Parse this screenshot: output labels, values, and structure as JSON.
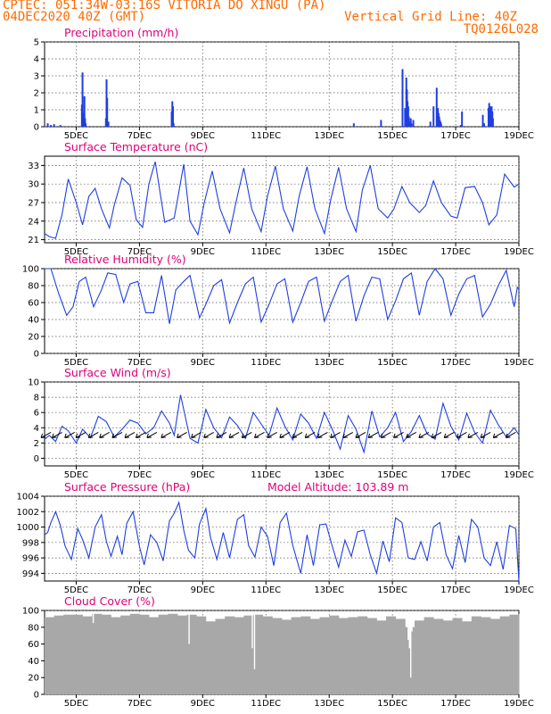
{
  "header": {
    "line1": "CPTEC:  051:34W-03:16S  VITORIA DO XINGU (PA)",
    "line2": "04DEC2020 40Z (GMT)",
    "grid_note": "Vertical Grid Line: 40Z",
    "code": "TQ0126L028"
  },
  "colors": {
    "header": "#ff6a00",
    "title": "#e0007a",
    "series": "#1f3fe0",
    "cloud": "#a8a8a8",
    "grid": "#555555"
  },
  "chart_data": [
    {
      "type": "bar",
      "title": "Precipitation (mm/h)",
      "ylim": [
        0,
        5
      ],
      "yticks": [
        0,
        1,
        2,
        3,
        4,
        5
      ],
      "xticks": [
        "5DEC",
        "7DEC",
        "9DEC",
        "11DEC",
        "13DEC",
        "15DEC",
        "17DEC",
        "19DEC"
      ],
      "grid": true,
      "series": [
        {
          "x": [
            0.1,
            0.2,
            0.3,
            0.5,
            1.18,
            1.2,
            1.22,
            1.26,
            1.28,
            1.3,
            1.94,
            1.96,
            1.98,
            2.02,
            4.02,
            4.04,
            4.06,
            4.08,
            9.78,
            10.64,
            11.32,
            11.4,
            11.44,
            11.46,
            11.48,
            11.5,
            11.52,
            11.54,
            11.58,
            11.6,
            11.66,
            12.2,
            12.3,
            12.4,
            12.44,
            12.46,
            12.48,
            12.5,
            12.52,
            12.54,
            13.16,
            13.2,
            13.86,
            13.9,
            14.04,
            14.06,
            14.08,
            14.1,
            14.12,
            14.14,
            14.16,
            14.18
          ],
          "values": [
            0.2,
            0.1,
            0.15,
            0.1,
            1.3,
            3.2,
            0.8,
            1.8,
            0.5,
            0.2,
            0.5,
            2.8,
            1.7,
            0.3,
            0.9,
            1.5,
            1.2,
            0.2,
            0.2,
            0.4,
            3.4,
            1.1,
            2.9,
            2.2,
            1.5,
            1.2,
            0.6,
            0.3,
            0.5,
            0.2,
            0.4,
            0.3,
            1.2,
            2.3,
            1.1,
            0.8,
            0.6,
            0.4,
            0.3,
            0.2,
            0.1,
            0.9,
            0.7,
            0.2,
            1.1,
            1.4,
            1.0,
            1.2,
            0.8,
            1.2,
            0.9,
            0.5
          ]
        }
      ]
    },
    {
      "type": "line",
      "title": "Surface Temperature (nC)",
      "ylim": [
        20.5,
        34.5
      ],
      "yticks": [
        21,
        24,
        27,
        30,
        33
      ],
      "xticks": [
        "5DEC",
        "7DEC",
        "9DEC",
        "11DEC",
        "13DEC",
        "15DEC",
        "17DEC",
        "19DEC"
      ],
      "grid": true,
      "series": [
        {
          "x": [
            0,
            0.15,
            0.35,
            0.55,
            0.75,
            1.0,
            1.2,
            1.4,
            1.6,
            1.8,
            2.05,
            2.2,
            2.45,
            2.7,
            2.9,
            3.1,
            3.3,
            3.5,
            3.8,
            4.1,
            4.4,
            4.6,
            4.85,
            5.05,
            5.3,
            5.55,
            5.85,
            6.05,
            6.3,
            6.55,
            6.85,
            7.05,
            7.3,
            7.55,
            7.85,
            8.05,
            8.3,
            8.55,
            8.85,
            9.05,
            9.3,
            9.55,
            9.85,
            10.05,
            10.3,
            10.55,
            10.85,
            11.05,
            11.3,
            11.55,
            11.85,
            12.05,
            12.3,
            12.55,
            12.85,
            13.05,
            13.3,
            13.6,
            13.85,
            14.05,
            14.3,
            14.55,
            14.85,
            15.0
          ],
          "values": [
            22.0,
            21.5,
            21.2,
            25.0,
            30.8,
            27.0,
            23.4,
            28.0,
            29.3,
            26.0,
            22.9,
            26.5,
            31.0,
            29.8,
            24.2,
            23.0,
            30.0,
            33.6,
            23.8,
            24.5,
            33.2,
            24.0,
            21.8,
            27.0,
            32.1,
            26.0,
            22.1,
            27.0,
            32.6,
            26.0,
            22.3,
            28.0,
            32.9,
            26.0,
            22.4,
            28.0,
            32.8,
            26.0,
            22.0,
            27.5,
            32.7,
            26.0,
            22.3,
            29.0,
            33.0,
            26.0,
            24.5,
            26.0,
            29.6,
            27.0,
            25.4,
            26.5,
            30.5,
            27.0,
            24.8,
            24.5,
            29.4,
            29.6,
            27.0,
            23.4,
            25.0,
            31.6,
            29.5,
            30.0
          ]
        }
      ]
    },
    {
      "type": "line",
      "title": "Relative Humidity (%)",
      "ylim": [
        0,
        100
      ],
      "yticks": [
        0,
        20,
        40,
        60,
        80,
        100
      ],
      "xticks": [
        "5DEC",
        "7DEC",
        "9DEC",
        "11DEC",
        "13DEC",
        "15DEC",
        "17DEC",
        "19DEC"
      ],
      "grid": true,
      "series": [
        {
          "x": [
            0,
            0.2,
            0.45,
            0.7,
            0.9,
            1.1,
            1.3,
            1.55,
            1.8,
            2.0,
            2.25,
            2.5,
            2.7,
            2.95,
            3.2,
            3.45,
            3.7,
            3.95,
            4.15,
            4.4,
            4.6,
            4.9,
            5.1,
            5.35,
            5.6,
            5.85,
            6.1,
            6.35,
            6.6,
            6.85,
            7.1,
            7.35,
            7.6,
            7.85,
            8.1,
            8.35,
            8.6,
            8.85,
            9.1,
            9.35,
            9.6,
            9.85,
            10.1,
            10.35,
            10.6,
            10.85,
            11.1,
            11.35,
            11.6,
            11.85,
            12.1,
            12.35,
            12.6,
            12.85,
            13.1,
            13.35,
            13.6,
            13.85,
            14.1,
            14.35,
            14.6,
            14.85,
            14.95,
            15.0
          ],
          "values": [
            100,
            100,
            70,
            45,
            55,
            85,
            90,
            55,
            75,
            95,
            93,
            60,
            82,
            85,
            48,
            48,
            92,
            35,
            75,
            85,
            92,
            42,
            58,
            80,
            87,
            36,
            60,
            82,
            90,
            37,
            58,
            82,
            88,
            37,
            60,
            85,
            90,
            38,
            62,
            85,
            92,
            38,
            68,
            90,
            88,
            40,
            62,
            88,
            95,
            45,
            85,
            100,
            88,
            45,
            70,
            88,
            92,
            43,
            58,
            80,
            98,
            55,
            78,
            76
          ]
        }
      ]
    },
    {
      "type": "line",
      "title": "Surface Wind (m/s)",
      "ylim": [
        -1,
        10
      ],
      "yticks": [
        0,
        2,
        4,
        6,
        8,
        10
      ],
      "xticks": [
        "5DEC",
        "7DEC",
        "9DEC",
        "11DEC",
        "13DEC",
        "15DEC",
        "17DEC",
        "19DEC"
      ],
      "grid": true,
      "series": [
        {
          "x": [
            0,
            0.15,
            0.35,
            0.55,
            0.75,
            1.0,
            1.2,
            1.45,
            1.7,
            1.95,
            2.2,
            2.45,
            2.7,
            2.95,
            3.2,
            3.45,
            3.7,
            3.95,
            4.1,
            4.3,
            4.6,
            4.85,
            5.1,
            5.35,
            5.6,
            5.85,
            6.1,
            6.35,
            6.6,
            6.85,
            7.1,
            7.35,
            7.6,
            7.85,
            8.1,
            8.35,
            8.6,
            8.85,
            9.1,
            9.35,
            9.6,
            9.85,
            10.1,
            10.35,
            10.6,
            10.85,
            11.1,
            11.35,
            11.6,
            11.85,
            12.1,
            12.35,
            12.6,
            12.85,
            13.1,
            13.35,
            13.6,
            13.85,
            14.1,
            14.35,
            14.6,
            14.85,
            15.0
          ],
          "values": [
            2.5,
            3.0,
            2.2,
            4.2,
            3.6,
            2.0,
            3.8,
            2.7,
            5.5,
            4.8,
            2.8,
            3.8,
            5.0,
            4.6,
            3.2,
            4.0,
            6.2,
            4.6,
            3.0,
            8.3,
            2.6,
            2.0,
            6.4,
            4.0,
            2.7,
            5.4,
            4.3,
            2.6,
            6.0,
            4.5,
            3.0,
            6.6,
            4.2,
            2.4,
            5.8,
            4.6,
            2.6,
            6.0,
            3.8,
            1.2,
            5.6,
            3.8,
            0.8,
            6.2,
            2.8,
            4.0,
            6.0,
            2.2,
            3.5,
            5.6,
            3.2,
            2.5,
            7.2,
            4.2,
            2.4,
            5.9,
            3.4,
            2.0,
            6.3,
            4.4,
            2.8,
            4.0,
            3.1
          ]
        }
      ],
      "vectors": {
        "x": [
          0.2,
          0.55,
          0.95,
          1.3,
          1.7,
          2.05,
          2.45,
          2.85,
          3.2,
          3.55,
          4.0,
          4.5,
          4.95,
          5.35,
          5.75,
          6.15,
          6.55,
          6.95,
          7.35,
          7.75,
          8.15,
          8.55,
          8.95,
          9.35,
          9.75,
          10.15,
          10.55,
          10.95,
          11.35,
          11.75,
          12.15,
          12.55,
          12.95,
          13.35,
          13.7,
          14.1,
          14.5,
          14.9
        ]
      }
    },
    {
      "type": "line",
      "title": "Surface Pressure (hPa)",
      "annotation": "Model Altitude: 103.89 m",
      "ylim": [
        993,
        1004
      ],
      "yticks": [
        994,
        996,
        998,
        1000,
        1002,
        1004
      ],
      "xticks": [
        "5DEC",
        "7DEC",
        "9DEC",
        "11DEC",
        "13DEC",
        "15DEC",
        "17DEC",
        "19DEC"
      ],
      "grid": true,
      "series": [
        {
          "x": [
            0,
            0.1,
            0.2,
            0.35,
            0.5,
            0.65,
            0.85,
            1.05,
            1.2,
            1.4,
            1.6,
            1.8,
            1.95,
            2.1,
            2.3,
            2.45,
            2.6,
            2.8,
            3.0,
            3.15,
            3.35,
            3.55,
            3.75,
            3.95,
            4.1,
            4.25,
            4.4,
            4.55,
            4.75,
            4.9,
            5.1,
            5.25,
            5.45,
            5.65,
            5.85,
            6.1,
            6.3,
            6.45,
            6.65,
            6.85,
            7.05,
            7.25,
            7.45,
            7.65,
            7.85,
            8.1,
            8.3,
            8.5,
            8.7,
            8.9,
            9.1,
            9.3,
            9.5,
            9.7,
            9.9,
            10.1,
            10.3,
            10.5,
            10.7,
            10.9,
            11.1,
            11.3,
            11.5,
            11.7,
            11.9,
            12.1,
            12.3,
            12.5,
            12.7,
            12.9,
            13.1,
            13.3,
            13.5,
            13.7,
            13.9,
            14.1,
            14.3,
            14.5,
            14.7,
            14.9,
            15.0
          ],
          "values": [
            999.0,
            999.3,
            1000.6,
            1002.0,
            1000.2,
            997.5,
            995.8,
            999.8,
            998.4,
            996.0,
            1000.0,
            1001.6,
            998.2,
            996.2,
            998.8,
            996.4,
            1000.5,
            1002.0,
            997.5,
            995.1,
            999.0,
            998.0,
            995.6,
            1000.8,
            1001.8,
            1003.2,
            999.6,
            997.0,
            996.0,
            1000.4,
            1002.4,
            998.6,
            995.8,
            999.3,
            996.0,
            1001.0,
            1001.6,
            997.6,
            996.1,
            1000.0,
            998.8,
            995.0,
            1000.6,
            1001.8,
            997.6,
            994.0,
            999.0,
            995.0,
            1000.3,
            1000.4,
            997.5,
            994.8,
            998.3,
            996.2,
            999.4,
            999.6,
            996.4,
            994.0,
            998.2,
            995.5,
            1001.2,
            1000.6,
            996.0,
            995.8,
            998.1,
            995.6,
            1000.0,
            1000.6,
            996.4,
            994.6,
            998.9,
            995.4,
            1001.0,
            1000.0,
            996.0,
            995.0,
            998.1,
            994.5,
            1000.2,
            999.8,
            993.0
          ]
        }
      ]
    },
    {
      "type": "bar",
      "title": "Cloud Cover (%)",
      "ylim": [
        0,
        100
      ],
      "yticks": [
        0,
        20,
        40,
        60,
        80,
        100
      ],
      "xticks": [
        "5DEC",
        "7DEC",
        "9DEC",
        "11DEC",
        "13DEC",
        "15DEC",
        "17DEC",
        "19DEC"
      ],
      "grid": true,
      "series": [
        {
          "x": [
            0,
            0.3,
            0.6,
            0.9,
            1.2,
            1.5,
            1.8,
            2.1,
            2.4,
            2.7,
            3.0,
            3.3,
            3.6,
            3.9,
            4.2,
            4.5,
            4.8,
            5.1,
            5.4,
            5.7,
            6.0,
            6.3,
            6.6,
            6.9,
            7.2,
            7.5,
            7.8,
            8.1,
            8.4,
            8.7,
            9.0,
            9.3,
            9.6,
            9.9,
            10.2,
            10.5,
            10.8,
            11.1,
            11.4,
            11.7,
            12.0,
            12.3,
            12.6,
            12.9,
            13.2,
            13.5,
            13.8,
            14.1,
            14.4,
            14.7,
            15.0
          ],
          "values": [
            92,
            94,
            95,
            95,
            93,
            96,
            95,
            92,
            94,
            96,
            95,
            92,
            95,
            96,
            94,
            95,
            93,
            87,
            90,
            93,
            92,
            94,
            95,
            93,
            91,
            89,
            92,
            93,
            90,
            92,
            94,
            91,
            92,
            93,
            91,
            88,
            93,
            90,
            80,
            88,
            92,
            90,
            88,
            91,
            87,
            93,
            92,
            90,
            93,
            95,
            96
          ]
        }
      ],
      "dips": {
        "x": [
          1.52,
          4.55,
          6.55,
          6.62,
          11.48,
          11.52,
          11.56,
          11.6
        ],
        "values": [
          85,
          60,
          55,
          30,
          65,
          55,
          20,
          75
        ]
      }
    }
  ]
}
